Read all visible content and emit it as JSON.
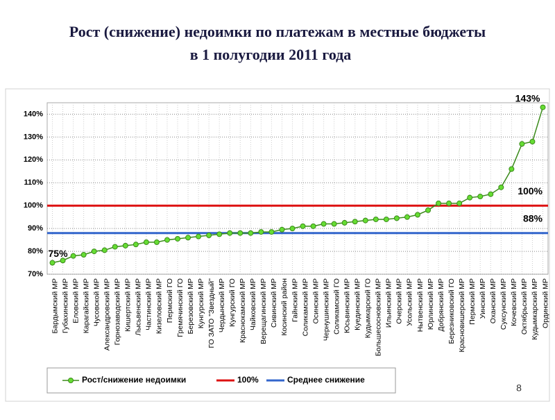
{
  "chart_data": {
    "type": "line",
    "title": "Рост (снижение) недоимки по платежам в местные бюджеты",
    "subtitle": "в 1 полугодии 2011 года",
    "categories": [
      "Бардымский МР",
      "Губахинский МР",
      "Еловский МР",
      "Карагайский МР",
      "Чусовской МР",
      "Александровский МР",
      "Горнозаводский МР",
      "Кишертский МР",
      "Лысьвенский МР",
      "Частинский МР",
      "Кизеловский МР",
      "Пермский ГО",
      "Гремячинский ГО",
      "Березовский МР",
      "Кунгурский МР",
      "ГО ЗАТО \"Звездный\"",
      "Чердынский МР",
      "Кунгурский ГО",
      "Краснокамский МР",
      "Чайковский МР",
      "Верещагинский МР",
      "Сивинский МР",
      "Косинский район",
      "Гайнский МР",
      "Соликамский МР",
      "Осинский МР",
      "Чернушинский МР",
      "Соликамский ГО",
      "Юсьвинский МР",
      "Куединский МР",
      "Кудымкарский ГО",
      "Большесосновский МР",
      "Ильинский МР",
      "Очерский МР",
      "Усольский МР",
      "Нытвенский МР",
      "Юрлинский МР",
      "Добрянский МР",
      "Березниковский ГО",
      "Красновишерский МР",
      "Пермский МР",
      "Уинский МР",
      "Оханский МР",
      "Суксунский МР",
      "Кочевский МР",
      "Октябрьский МР",
      "Кудымкарский МР",
      "Ординский МР"
    ],
    "series": [
      {
        "name": "Рост/снижение недоимки",
        "color": "#3a8a1a",
        "marker_color": "#66dd33",
        "values": [
          75,
          76,
          78,
          78.5,
          80,
          80.5,
          82,
          82.5,
          83,
          84,
          84,
          85,
          85.5,
          86,
          86.5,
          87,
          87.5,
          88,
          88,
          88,
          88.5,
          88.5,
          89.5,
          90,
          91,
          91,
          92,
          92,
          92.5,
          93,
          93.5,
          94,
          94,
          94.5,
          95,
          96,
          98,
          101,
          101,
          101,
          103.5,
          104,
          105,
          108,
          116,
          127,
          128,
          143
        ],
        "value_labels": [
          "75%",
          null,
          null,
          null,
          null,
          null,
          null,
          null,
          null,
          null,
          null,
          null,
          null,
          null,
          null,
          null,
          null,
          null,
          null,
          null,
          null,
          null,
          null,
          null,
          null,
          null,
          null,
          null,
          null,
          null,
          null,
          null,
          null,
          null,
          null,
          null,
          null,
          null,
          null,
          null,
          null,
          null,
          null,
          null,
          null,
          null,
          null,
          "143%"
        ]
      }
    ],
    "reference_lines": [
      {
        "name": "100%",
        "value": 100,
        "label": "100%",
        "color": "#dd1111"
      },
      {
        "name": "Среднее снижение",
        "value": 88,
        "label": "88%",
        "color": "#3366cc"
      }
    ],
    "ylim": [
      70,
      145
    ],
    "yticks": [
      {
        "value": 70,
        "label": "70%"
      },
      {
        "value": 80,
        "label": "80%"
      },
      {
        "value": 90,
        "label": "90%"
      },
      {
        "value": 100,
        "label": "100%"
      },
      {
        "value": 110,
        "label": "110%"
      },
      {
        "value": 120,
        "label": "120%"
      },
      {
        "value": 130,
        "label": "130%"
      },
      {
        "value": 140,
        "label": "140%"
      }
    ],
    "grid": true,
    "legend": "bottom",
    "page_number": "8"
  }
}
